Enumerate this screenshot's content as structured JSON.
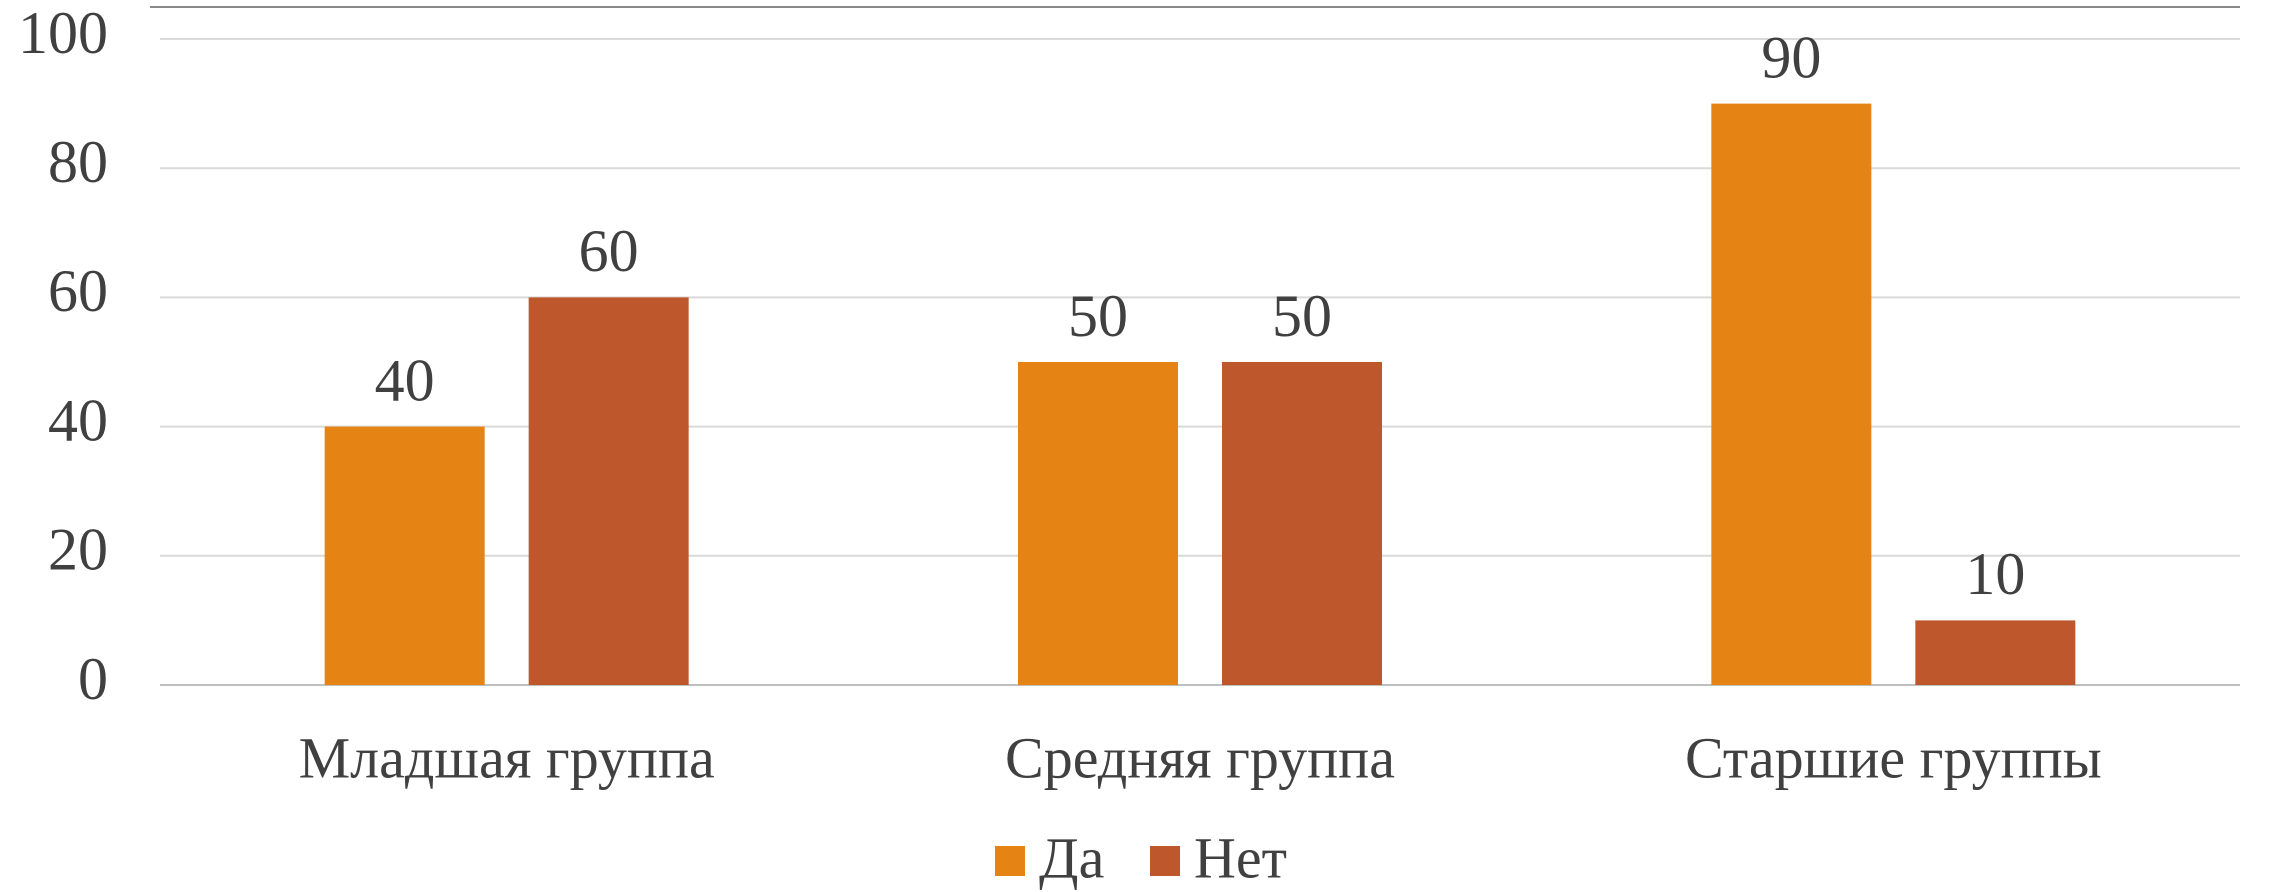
{
  "chart_data": {
    "type": "bar",
    "categories": [
      "Младшая группа",
      "Средняя группа",
      "Старшие группы"
    ],
    "series": [
      {
        "name": "Да",
        "color": "#e58314",
        "values": [
          40,
          50,
          90
        ]
      },
      {
        "name": "Нет",
        "color": "#be582c",
        "values": [
          60,
          50,
          10
        ]
      }
    ],
    "ylim": [
      0,
      100
    ],
    "yticks": [
      0,
      20,
      40,
      60,
      80,
      100
    ],
    "grid": true,
    "legend": "bottom"
  }
}
